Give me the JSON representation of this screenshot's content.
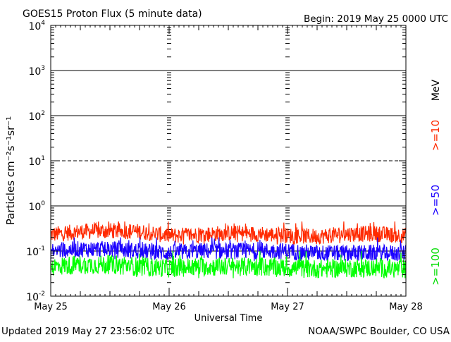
{
  "header": {
    "title": "GOES15 Proton Flux (5 minute data)",
    "begin": "Begin: 2019 May 25 0000 UTC"
  },
  "footer": {
    "updated": "Updated 2019 May 27 23:56:02 UTC",
    "source": "NOAA/SWPC Boulder, CO USA"
  },
  "chart_data": {
    "type": "line",
    "title": "GOES15 Proton Flux (5 minute data)",
    "xlabel": "Universal Time",
    "ylabel": "Particles cm⁻²s⁻¹sr⁻¹",
    "y_scale": "log",
    "ylim": [
      0.01,
      10000
    ],
    "y_ticks": [
      {
        "base": "10",
        "exp": "4"
      },
      {
        "base": "10",
        "exp": "3"
      },
      {
        "base": "10",
        "exp": "2"
      },
      {
        "base": "10",
        "exp": "1"
      },
      {
        "base": "10",
        "exp": "0"
      },
      {
        "base": "10",
        "exp": "-1"
      },
      {
        "base": "10",
        "exp": "-2"
      }
    ],
    "x_ticks": [
      "May 25",
      "May 26",
      "May 27",
      "May 28"
    ],
    "x_range": [
      "2019-05-25",
      "2019-05-28"
    ],
    "right_label": "MeV",
    "series": [
      {
        "name": ">=10",
        "color": "#ff2a00",
        "typical_range": [
          0.14,
          0.45
        ],
        "x": [
          "2019-05-25",
          "2019-05-25T06",
          "2019-05-25T12",
          "2019-05-25T18",
          "2019-05-26",
          "2019-05-26T06",
          "2019-05-26T12",
          "2019-05-26T18",
          "2019-05-27",
          "2019-05-27T06",
          "2019-05-27T12",
          "2019-05-27T18",
          "2019-05-28"
        ],
        "values": [
          0.23,
          0.27,
          0.28,
          0.27,
          0.22,
          0.23,
          0.25,
          0.24,
          0.22,
          0.21,
          0.24,
          0.24,
          0.22
        ]
      },
      {
        "name": ">=50",
        "color": "#1a00ff",
        "typical_range": [
          0.06,
          0.2
        ],
        "x": [
          "2019-05-25",
          "2019-05-25T06",
          "2019-05-25T12",
          "2019-05-25T18",
          "2019-05-26",
          "2019-05-26T06",
          "2019-05-26T12",
          "2019-05-26T18",
          "2019-05-27",
          "2019-05-27T06",
          "2019-05-27T12",
          "2019-05-27T18",
          "2019-05-28"
        ],
        "values": [
          0.1,
          0.11,
          0.11,
          0.1,
          0.09,
          0.1,
          0.1,
          0.1,
          0.1,
          0.09,
          0.09,
          0.09,
          0.09
        ]
      },
      {
        "name": ">=100",
        "color": "#00ff00",
        "typical_range": [
          0.025,
          0.1
        ],
        "x": [
          "2019-05-25",
          "2019-05-25T06",
          "2019-05-25T12",
          "2019-05-25T18",
          "2019-05-26",
          "2019-05-26T06",
          "2019-05-26T12",
          "2019-05-26T18",
          "2019-05-27",
          "2019-05-27T06",
          "2019-05-27T12",
          "2019-05-27T18",
          "2019-05-28"
        ],
        "values": [
          0.045,
          0.05,
          0.05,
          0.045,
          0.042,
          0.045,
          0.045,
          0.045,
          0.042,
          0.04,
          0.042,
          0.042,
          0.04
        ]
      }
    ]
  }
}
